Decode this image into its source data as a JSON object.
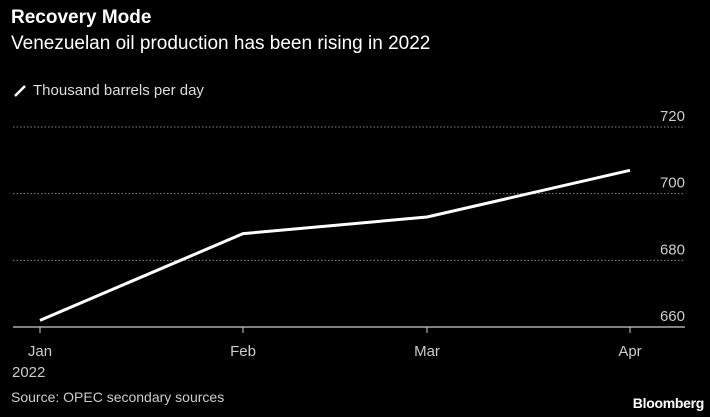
{
  "chart_data": {
    "type": "line",
    "title": "Recovery Mode",
    "subtitle": "Venezuelan oil production has been rising in 2022",
    "x": [
      "Jan",
      "Feb",
      "Mar",
      "Apr"
    ],
    "x_tick_labels": [
      [
        "Jan",
        "2022"
      ],
      [
        "Feb"
      ],
      [
        "Mar"
      ],
      [
        "Apr"
      ]
    ],
    "series": [
      {
        "name": "Thousand barrels per day",
        "values": [
          662,
          688,
          693,
          707
        ],
        "color": "#ffffff"
      }
    ],
    "ylim": [
      660,
      720
    ],
    "y_ticks": [
      660,
      680,
      700,
      720
    ],
    "y_axis_side": "right",
    "grid": true,
    "legend": "top-left",
    "source": "Source: OPEC secondary sources",
    "brand": "Bloomberg"
  }
}
